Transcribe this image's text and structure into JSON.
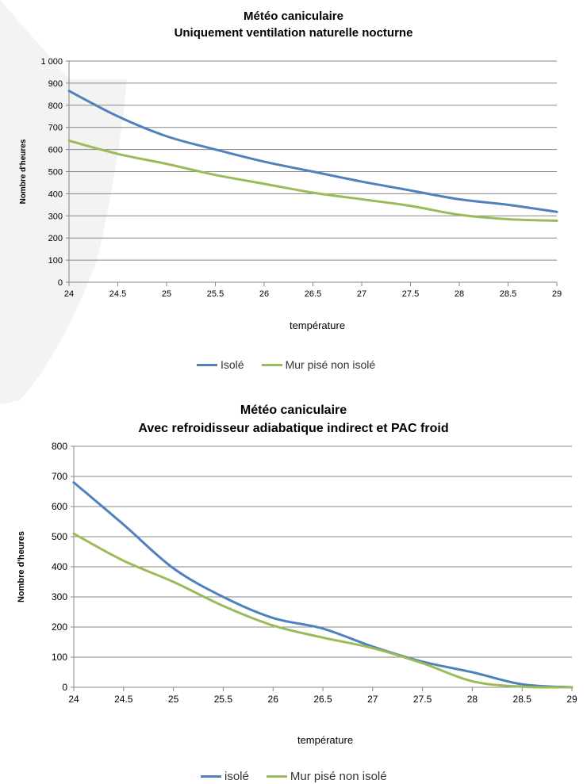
{
  "chart_data": [
    {
      "type": "line",
      "title": "Météo caniculaire",
      "subtitle": "Uniquement ventilation naturelle nocturne",
      "xlabel": "température",
      "ylabel": "Nombre d'heures",
      "x": [
        24,
        24.5,
        25,
        25.5,
        26,
        26.5,
        27,
        27.5,
        28,
        28.5,
        29
      ],
      "xticks": [
        "24",
        "24.5",
        "25",
        "25.5",
        "26",
        "26.5",
        "27",
        "27.5",
        "28",
        "28.5",
        "29"
      ],
      "yticks": [
        "0",
        "100",
        "200",
        "300",
        "400",
        "500",
        "600",
        "700",
        "800",
        "900",
        "1 000"
      ],
      "ylim": [
        0,
        1000
      ],
      "grid": true,
      "legend_position": "bottom",
      "series": [
        {
          "name": "Isolé",
          "color": "#4f81bd",
          "values": [
            865,
            750,
            660,
            600,
            545,
            500,
            455,
            415,
            375,
            350,
            318
          ]
        },
        {
          "name": "Mur pisé non isolé",
          "color": "#9bbb59",
          "values": [
            640,
            580,
            535,
            485,
            445,
            405,
            375,
            345,
            305,
            285,
            278
          ]
        }
      ]
    },
    {
      "type": "line",
      "title": "Météo caniculaire",
      "subtitle": "Avec refroidisseur adiabatique indirect et PAC froid",
      "xlabel": "température",
      "ylabel": "Nombre d'heures",
      "x": [
        24,
        24.5,
        25,
        25.5,
        26,
        26.5,
        27,
        27.5,
        28,
        28.5,
        29
      ],
      "xticks": [
        "24",
        "24.5",
        "25",
        "25.5",
        "26",
        "26.5",
        "27",
        "27.5",
        "28",
        "28.5",
        "29"
      ],
      "yticks": [
        "0",
        "100",
        "200",
        "300",
        "400",
        "500",
        "600",
        "700",
        "800"
      ],
      "ylim": [
        0,
        800
      ],
      "grid": true,
      "legend_position": "bottom",
      "series": [
        {
          "name": "isolé",
          "color": "#4f81bd",
          "values": [
            680,
            540,
            395,
            300,
            230,
            195,
            135,
            85,
            50,
            10,
            0
          ]
        },
        {
          "name": "Mur pisé non isolé",
          "color": "#9bbb59",
          "values": [
            510,
            420,
            350,
            270,
            205,
            165,
            130,
            80,
            20,
            2,
            0
          ]
        }
      ]
    }
  ]
}
